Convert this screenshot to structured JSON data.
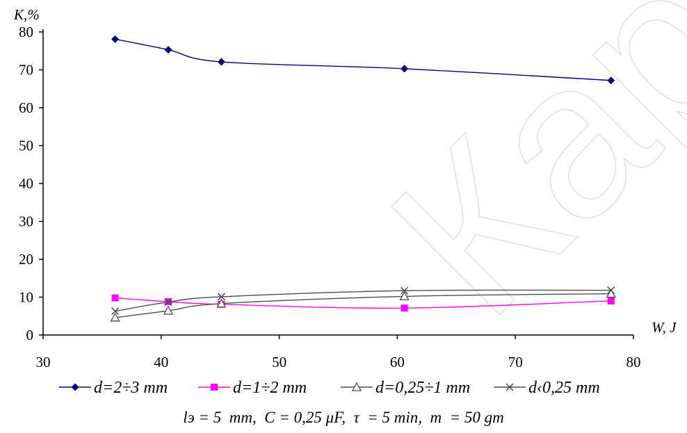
{
  "chart_data": {
    "type": "line",
    "ylabel": "K,%",
    "xlabel": "W, J",
    "xlim": [
      30,
      80
    ],
    "ylim": [
      0,
      80
    ],
    "xticks": [
      "30",
      "40",
      "50",
      "60",
      "70",
      "80"
    ],
    "yticks": [
      "0",
      "10",
      "20",
      "30",
      "40",
      "50",
      "60",
      "70",
      "80"
    ],
    "legend_position": "bottom",
    "series": [
      {
        "name": "d=2÷3 mm",
        "color": "#000080",
        "marker": "diamond",
        "x": [
          36.1,
          40.6,
          45.1,
          60.6,
          78.1
        ],
        "y": [
          78.1,
          75.3,
          72.1,
          70.3,
          67.2
        ]
      },
      {
        "name": "d=1÷2 mm",
        "color": "#ff00ff",
        "marker": "square",
        "x": [
          36.1,
          40.6,
          45.1,
          60.6,
          78.1
        ],
        "y": [
          9.8,
          8.8,
          8.1,
          7.1,
          9.0
        ]
      },
      {
        "name": "d=0,25÷1 mm",
        "color": "#4d4d4d",
        "marker": "triangle",
        "x": [
          36.1,
          40.6,
          45.1,
          60.6,
          78.1
        ],
        "y": [
          4.6,
          6.4,
          8.3,
          10.2,
          10.9
        ]
      },
      {
        "name": "d‹0,25 mm",
        "color": "#4d4d4d",
        "marker": "x",
        "x": [
          36.1,
          40.6,
          45.1,
          60.6,
          78.1
        ],
        "y": [
          6.3,
          8.7,
          10.1,
          11.7,
          11.8
        ]
      }
    ]
  },
  "caption": "lэ = 5  mm,  C = 0,25 μF,  τ  = 5 min,  m  = 50 gm",
  "watermark": "Кар"
}
